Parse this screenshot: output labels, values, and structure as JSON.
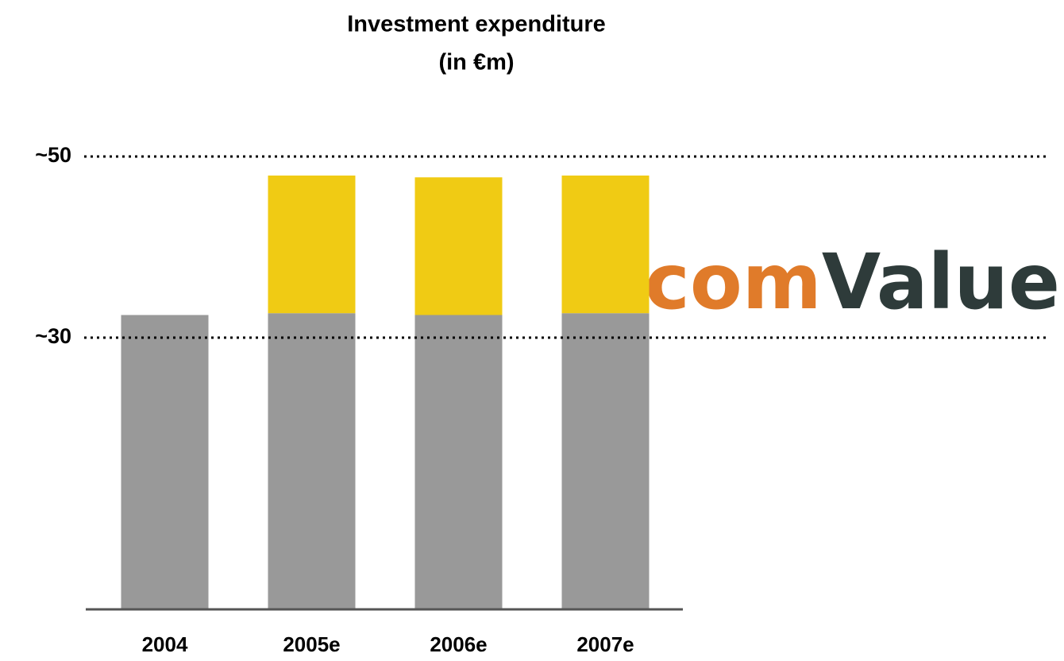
{
  "chart_data": {
    "type": "bar",
    "stacked": true,
    "title": [
      "Investment expenditure",
      "(in €m)"
    ],
    "categories": [
      "2004",
      "2005e",
      "2006e",
      "2007e"
    ],
    "series": [
      {
        "color": "#999999",
        "values": [
          32.5,
          32.7,
          32.5,
          32.7
        ]
      },
      {
        "color": "#f0cb14",
        "values": [
          null,
          15.2,
          15.2,
          15.2
        ]
      }
    ],
    "ylim": [
      0,
      55
    ],
    "yticks": [
      {
        "value": 30,
        "label": "~30"
      },
      {
        "value": 50,
        "label": "~50"
      }
    ],
    "grid": true,
    "logo": [
      "com",
      "Value"
    ]
  }
}
